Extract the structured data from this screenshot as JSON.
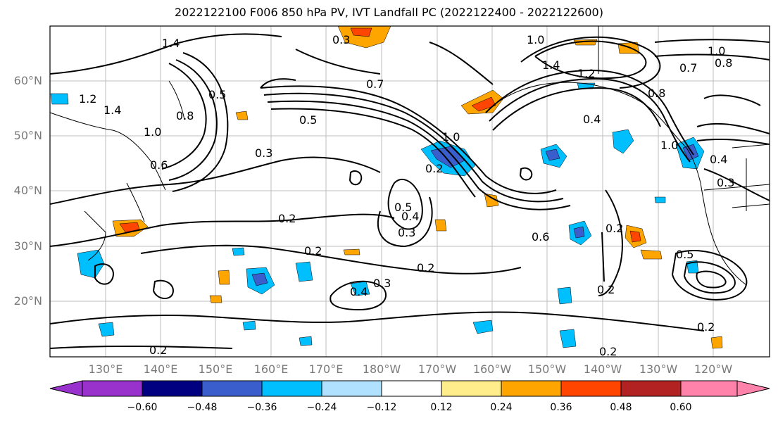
{
  "title": "2022122100 F006 850 hPa PV, IVT Landfall PC (2022122400 - 2022122600)",
  "latitude_labels": [
    "60°N",
    "50°N",
    "40°N",
    "30°N",
    "20°N"
  ],
  "longitude_labels": [
    "130°E",
    "140°E",
    "150°E",
    "160°E",
    "170°E",
    "180°W",
    "170°W",
    "160°W",
    "150°W",
    "140°W",
    "130°W",
    "120°W"
  ],
  "contour_labels": [
    "1.4",
    "1.2",
    "1.4",
    "0.8",
    "1.0",
    "0.6",
    "0.5",
    "0.5",
    "0.3",
    "0.2",
    "0.2",
    "0.2",
    "0.4",
    "0.5",
    "0.3",
    "0.4",
    "0.3",
    "0.2",
    "0.6",
    "0.2",
    "0.2",
    "0.2",
    "1.0",
    "1.4",
    "1.2",
    "0.8",
    "0.4",
    "1.0",
    "0.4",
    "0.3",
    "0.5",
    "1.0",
    "0.8",
    "0.7",
    "0.2",
    "0.2",
    "0.3",
    "0.7",
    "1.0"
  ],
  "colorbar": {
    "ticks": [
      "−0.60",
      "−0.48",
      "−0.36",
      "−0.24",
      "−0.12",
      "0.12",
      "0.24",
      "0.36",
      "0.48",
      "0.60"
    ],
    "colors": [
      "#9932cc",
      "#000080",
      "#3a5fcd",
      "#00bfff",
      "#b0e2ff",
      "#ffffff",
      "#ffec8b",
      "#ffa500",
      "#ff4500",
      "#b22222",
      "#ff82ab"
    ]
  }
}
